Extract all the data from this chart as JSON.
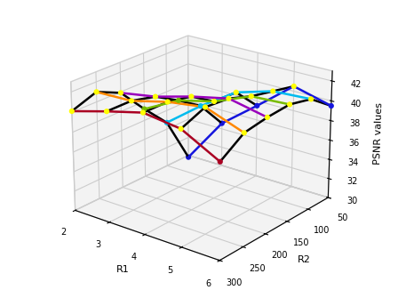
{
  "R1_values": [
    2,
    3,
    4,
    5,
    6
  ],
  "R2_values": [
    50,
    100,
    150,
    200,
    250,
    300
  ],
  "PSNR": [
    [
      29.8,
      34.6,
      37.5,
      40.5,
      39.5
    ],
    [
      34.7,
      37.5,
      39.9,
      41.0,
      41.2
    ],
    [
      37.2,
      39.1,
      40.0,
      41.5,
      41.7
    ],
    [
      39.9,
      40.5,
      41.5,
      42.3,
      41.5
    ],
    [
      41.0,
      41.1,
      42.0,
      42.5,
      41.1
    ],
    [
      40.1,
      41.1,
      42.0,
      41.5,
      39.5
    ]
  ],
  "R2_line_colors": [
    "#1515dd",
    "#00bbee",
    "#77bb00",
    "#9900bb",
    "#ff8800",
    "#aa0022"
  ],
  "black_line_color": "#000000",
  "ylabel": "PSNR values",
  "xlabel_r2": "R2",
  "xlabel_r1": "R1",
  "zlim": [
    30,
    43
  ],
  "elev": 22,
  "azim": -52
}
